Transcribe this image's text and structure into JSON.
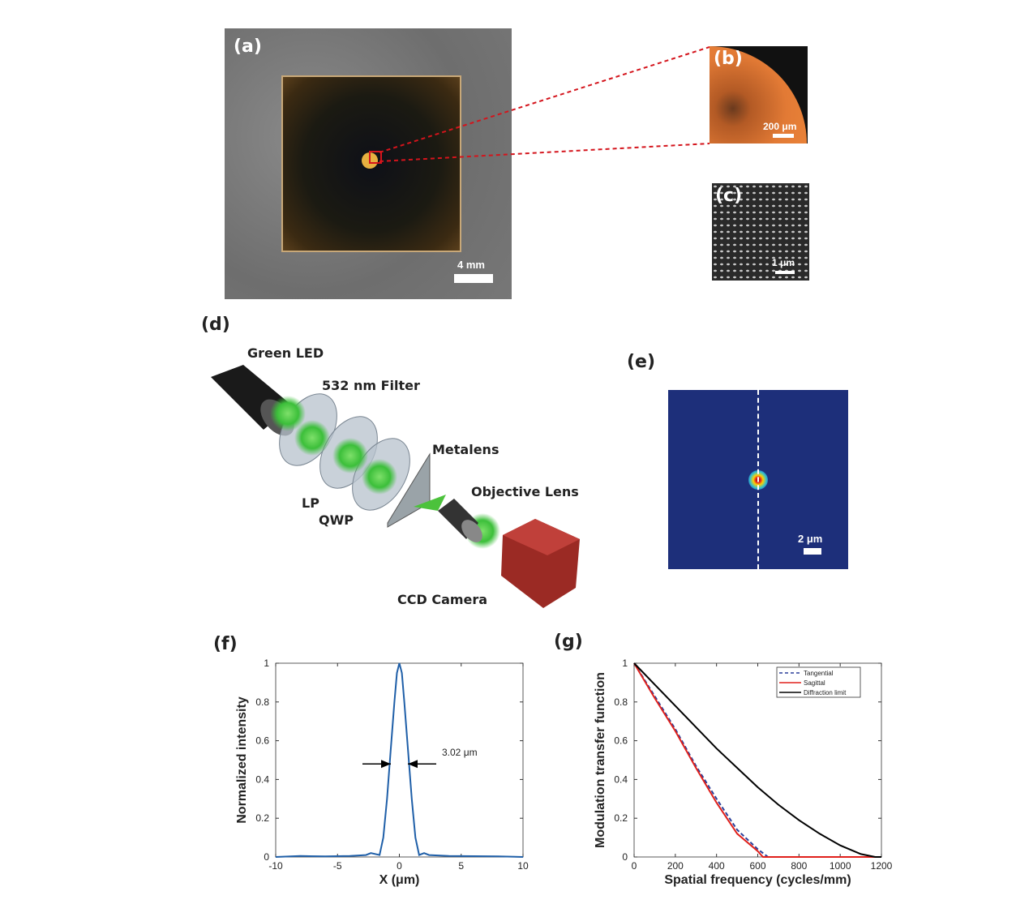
{
  "panels": {
    "a": {
      "label": "(a)",
      "scale_bar": "4 mm"
    },
    "b": {
      "label": "(b)",
      "scale_bar": "200 μm"
    },
    "c": {
      "label": "(c)",
      "scale_bar": "1 μm"
    },
    "d": {
      "label": "(d)",
      "components": {
        "green_led": "Green LED",
        "filter": "532 nm Filter",
        "metalens": "Metalens",
        "objective": "Objective Lens",
        "lp": "LP",
        "qwp": "QWP",
        "ccd": "CCD Camera"
      }
    },
    "e": {
      "label": "(e)",
      "scale_bar": "2 μm"
    },
    "f": {
      "label": "(f)"
    },
    "g": {
      "label": "(g)"
    }
  },
  "colors": {
    "psf_line": "#1f5fa8",
    "tangential": "#2a3f9a",
    "sagittal": "#e0201b",
    "diffraction": "#000000",
    "focal_bg": "#1d2f7a",
    "zoom_lines": "#d4141c"
  },
  "chart_data": [
    {
      "panel": "f",
      "type": "line",
      "xlabel": "X (μm)",
      "ylabel": "Normalized intensity",
      "xlim": [
        -10,
        10
      ],
      "ylim": [
        0,
        1
      ],
      "xticks": [
        "-10",
        "-5",
        "0",
        "5",
        "10"
      ],
      "yticks": [
        "0",
        "0.2",
        "0.4",
        "0.6",
        "0.8",
        "1"
      ],
      "annotation": "3.02 μm",
      "series": [
        {
          "x": [
            -10,
            -8,
            -6,
            -4,
            -2.7,
            -2.3,
            -1.6,
            -1.3,
            -1.0,
            -0.7,
            -0.4,
            -0.2,
            0,
            0.2,
            0.4,
            0.7,
            1.0,
            1.3,
            1.6,
            2.0,
            2.4,
            4,
            6,
            8,
            10
          ],
          "y": [
            0,
            0.005,
            0.003,
            0.005,
            0.01,
            0.02,
            0.01,
            0.1,
            0.3,
            0.55,
            0.8,
            0.95,
            1,
            0.95,
            0.8,
            0.55,
            0.3,
            0.1,
            0.01,
            0.02,
            0.01,
            0.005,
            0.004,
            0.003,
            0
          ]
        }
      ],
      "grid": false
    },
    {
      "panel": "g",
      "type": "line",
      "xlabel": "Spatial frequency (cycles/mm)",
      "ylabel": "Modulation transfer function",
      "xlim": [
        0,
        1200
      ],
      "ylim": [
        0,
        1
      ],
      "xticks": [
        "0",
        "200",
        "400",
        "600",
        "800",
        "1000",
        "1200"
      ],
      "yticks": [
        "0",
        "0.2",
        "0.4",
        "0.6",
        "0.8",
        "1"
      ],
      "legend": "top-right",
      "grid": false,
      "series": [
        {
          "name": "Tangential",
          "style": "dashed",
          "x": [
            0,
            100,
            200,
            300,
            400,
            500,
            600,
            650,
            800,
            1200
          ],
          "y": [
            1,
            0.83,
            0.66,
            0.47,
            0.3,
            0.14,
            0.04,
            0,
            0,
            0
          ]
        },
        {
          "name": "Sagittal",
          "style": "solid",
          "x": [
            0,
            100,
            200,
            300,
            400,
            500,
            600,
            625,
            800,
            1200
          ],
          "y": [
            1,
            0.82,
            0.65,
            0.46,
            0.28,
            0.12,
            0.03,
            0,
            0,
            0
          ]
        },
        {
          "name": "Diffraction limit",
          "style": "solid",
          "x": [
            0,
            100,
            200,
            300,
            400,
            500,
            600,
            700,
            800,
            900,
            1000,
            1100,
            1170,
            1200
          ],
          "y": [
            1,
            0.89,
            0.78,
            0.67,
            0.56,
            0.46,
            0.36,
            0.27,
            0.19,
            0.12,
            0.06,
            0.015,
            0,
            0
          ]
        }
      ]
    }
  ]
}
